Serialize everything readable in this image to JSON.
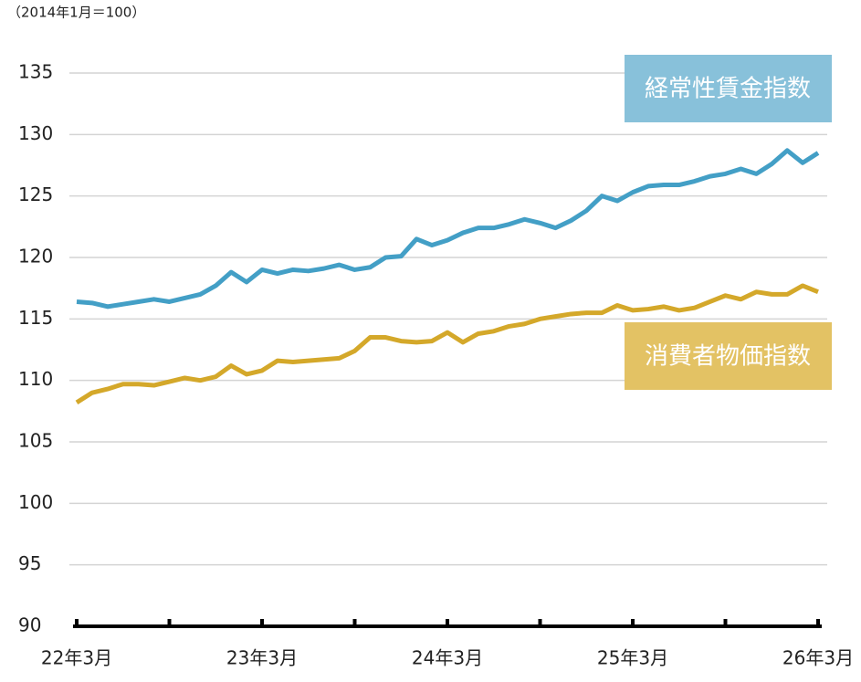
{
  "chart_data": {
    "type": "line",
    "subtitle": "（2014年1月＝100）",
    "categories": [
      "22年3月",
      null,
      null,
      null,
      null,
      null,
      null,
      null,
      null,
      null,
      null,
      null,
      "23年3月",
      null,
      null,
      null,
      null,
      null,
      null,
      null,
      null,
      null,
      null,
      null,
      "24年3月",
      null,
      null,
      null,
      null,
      null,
      null,
      null,
      null,
      null,
      null,
      null,
      "25年3月",
      null,
      null,
      null,
      null,
      null,
      null,
      null,
      null,
      null,
      null,
      null,
      "26年3月"
    ],
    "series": [
      {
        "name": "経常性賃金指数",
        "color": "#439fc6",
        "label_color": "#88c1da",
        "values": [
          116.4,
          116.3,
          116.0,
          116.2,
          116.4,
          116.6,
          116.4,
          116.7,
          117.0,
          117.7,
          118.8,
          118.0,
          119.0,
          118.7,
          119.0,
          118.9,
          119.1,
          119.4,
          119.0,
          119.2,
          120.0,
          120.1,
          121.5,
          121.0,
          121.4,
          122.0,
          122.4,
          122.4,
          122.7,
          123.1,
          122.8,
          122.4,
          123.0,
          123.8,
          125.0,
          124.6,
          125.3,
          125.8,
          125.9,
          125.9,
          126.2,
          126.6,
          126.8,
          127.2,
          126.8,
          127.6,
          128.7,
          127.7,
          128.5
        ]
      },
      {
        "name": "消費者物価指数",
        "color": "#d4a82a",
        "label_color": "#e3c264",
        "values": [
          108.2,
          109.0,
          109.3,
          109.7,
          109.7,
          109.6,
          109.9,
          110.2,
          110.0,
          110.3,
          111.2,
          110.5,
          110.8,
          111.6,
          111.5,
          111.6,
          111.7,
          111.8,
          112.4,
          113.5,
          113.5,
          113.2,
          113.1,
          113.2,
          113.9,
          113.1,
          113.8,
          114.0,
          114.4,
          114.6,
          115.0,
          115.2,
          115.4,
          115.5,
          115.5,
          116.1,
          115.7,
          115.8,
          116.0,
          115.7,
          115.9,
          116.4,
          116.9,
          116.6,
          117.2,
          117.0,
          117.0,
          117.7,
          117.2
        ]
      }
    ],
    "ylim": [
      90,
      135
    ],
    "yticks": [
      90,
      95,
      100,
      105,
      110,
      115,
      120,
      125,
      130,
      135
    ],
    "grid": true
  }
}
